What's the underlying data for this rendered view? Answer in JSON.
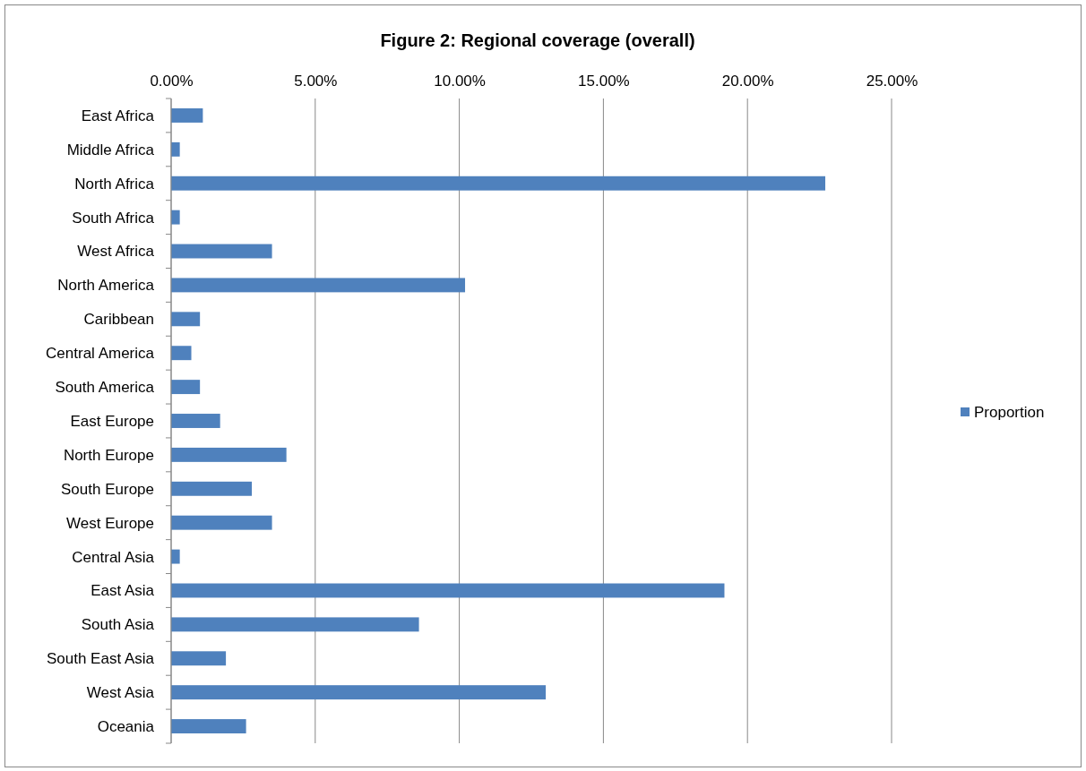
{
  "chart_data": {
    "type": "bar",
    "orientation": "horizontal",
    "title": "Figure 2: Regional coverage (overall)",
    "categories": [
      "East Africa",
      "Middle Africa",
      "North Africa",
      "South Africa",
      "West Africa",
      "North America",
      "Caribbean",
      "Central America",
      "South America",
      "East Europe",
      "North Europe",
      "South Europe",
      "West Europe",
      "Central Asia",
      "East Asia",
      "South Asia",
      "South East Asia",
      "West Asia",
      "Oceania"
    ],
    "series": [
      {
        "name": "Proportion",
        "color": "#4f81bd",
        "values": [
          1.1,
          0.3,
          22.7,
          0.3,
          3.5,
          10.2,
          1.0,
          0.7,
          1.0,
          1.7,
          4.0,
          2.8,
          3.5,
          0.3,
          19.2,
          8.6,
          1.9,
          13.0,
          2.6
        ]
      }
    ],
    "xlim": [
      0,
      25
    ],
    "xticks": [
      {
        "value": 0,
        "label": "0.00%"
      },
      {
        "value": 5,
        "label": "5.00%"
      },
      {
        "value": 10,
        "label": "10.00%"
      },
      {
        "value": 15,
        "label": "15.00%"
      },
      {
        "value": 20,
        "label": "20.00%"
      },
      {
        "value": 25,
        "label": "25.00%"
      }
    ],
    "grid": "x",
    "legend": "right"
  }
}
